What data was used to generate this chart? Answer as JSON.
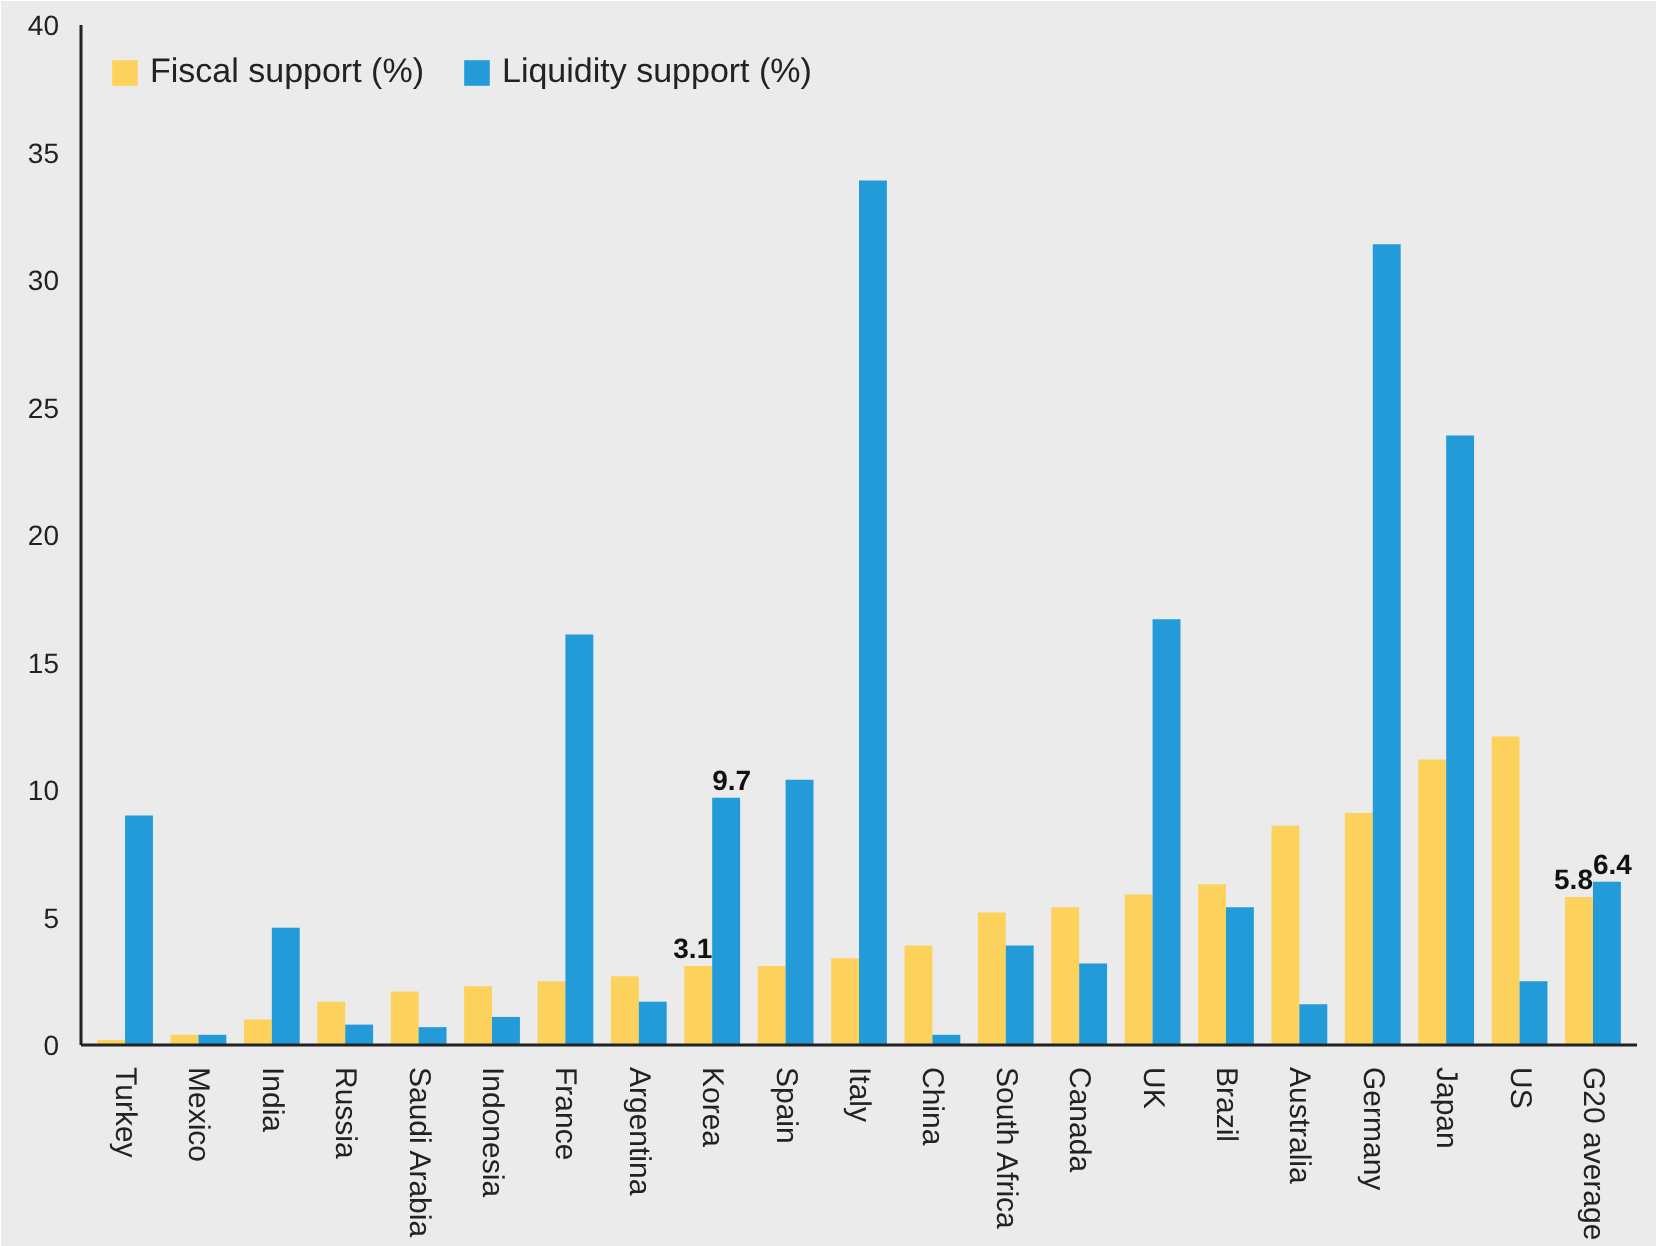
{
  "chart_data": {
    "type": "bar",
    "categories": [
      "Turkey",
      "Mexico",
      "India",
      "Russia",
      "Saudi Arabia",
      "Indonesia",
      "France",
      "Argentina",
      "Korea",
      "Spain",
      "Italy",
      "China",
      "South Africa",
      "Canada",
      "UK",
      "Brazil",
      "Australia",
      "Germany",
      "Japan",
      "US",
      "G20 average"
    ],
    "series": [
      {
        "name": "Fiscal support (%)",
        "color": "#fdd25c",
        "values": [
          0.2,
          0.4,
          1.0,
          1.7,
          2.1,
          2.3,
          2.5,
          2.7,
          3.1,
          3.1,
          3.4,
          3.9,
          5.2,
          5.4,
          5.9,
          6.3,
          8.6,
          9.1,
          11.2,
          12.1,
          5.8
        ],
        "value_labels": [
          null,
          null,
          null,
          null,
          null,
          null,
          null,
          null,
          "3.1",
          null,
          null,
          null,
          null,
          null,
          null,
          null,
          null,
          null,
          null,
          null,
          "5.8"
        ]
      },
      {
        "name": "Liquidity support (%)",
        "color": "#239bd8",
        "values": [
          9.0,
          0.4,
          4.6,
          0.8,
          0.7,
          1.1,
          16.1,
          1.7,
          9.7,
          10.4,
          33.9,
          0.4,
          3.9,
          3.2,
          16.7,
          5.4,
          1.6,
          31.4,
          23.9,
          2.5,
          6.4
        ],
        "value_labels": [
          null,
          null,
          null,
          null,
          null,
          null,
          null,
          null,
          "9.7",
          null,
          null,
          null,
          null,
          null,
          null,
          null,
          null,
          null,
          null,
          null,
          "6.4"
        ]
      }
    ],
    "ylim": [
      0,
      40
    ],
    "yticks": [
      0,
      5,
      10,
      15,
      20,
      25,
      30,
      35,
      40
    ],
    "grid": false,
    "legend": "top left"
  }
}
